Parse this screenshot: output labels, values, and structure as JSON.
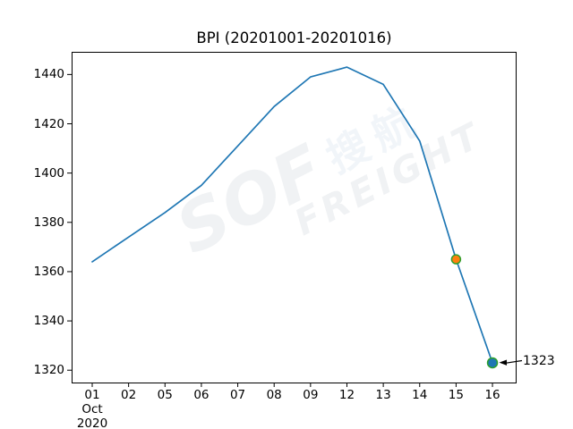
{
  "chart_data": {
    "type": "line",
    "title": "BPI (20201001-20201016)",
    "xlabel": "",
    "ylabel": "",
    "categories": [
      "01",
      "02",
      "05",
      "06",
      "07",
      "08",
      "09",
      "12",
      "13",
      "14",
      "15",
      "16"
    ],
    "x_axis_extra_lines": [
      "Oct",
      "2020"
    ],
    "series": [
      {
        "name": "BPI",
        "color": "#1f77b4",
        "values": [
          1364,
          1374,
          1384,
          1395,
          1411,
          1427,
          1439,
          1443,
          1436,
          1413,
          1365,
          1323
        ]
      }
    ],
    "y_ticks": [
      1320,
      1340,
      1360,
      1380,
      1400,
      1420,
      1440
    ],
    "ylim": [
      1315,
      1449.2
    ],
    "grid": false,
    "legend_position": "none",
    "markers": [
      {
        "category_index": 10,
        "value": 1365,
        "fill": "#ff7f0e",
        "edge": "#2ca02c",
        "radius": 5
      },
      {
        "category_index": 11,
        "value": 1323,
        "fill": "#1f77b4",
        "edge": "#2ca02c",
        "radius": 5.5
      }
    ],
    "annotation": {
      "text": "1323",
      "category_index": 11,
      "value": 1323,
      "arrow_color": "#000000"
    }
  },
  "watermark": {
    "cn": "搜航",
    "logo": "SOF",
    "en": "FREIGHT"
  },
  "colors": {
    "background": "#ffffff",
    "spine": "#000000",
    "text": "#000000",
    "line": "#1f77b4",
    "marker_orange": "#ff7f0e",
    "marker_green_edge": "#2ca02c"
  }
}
